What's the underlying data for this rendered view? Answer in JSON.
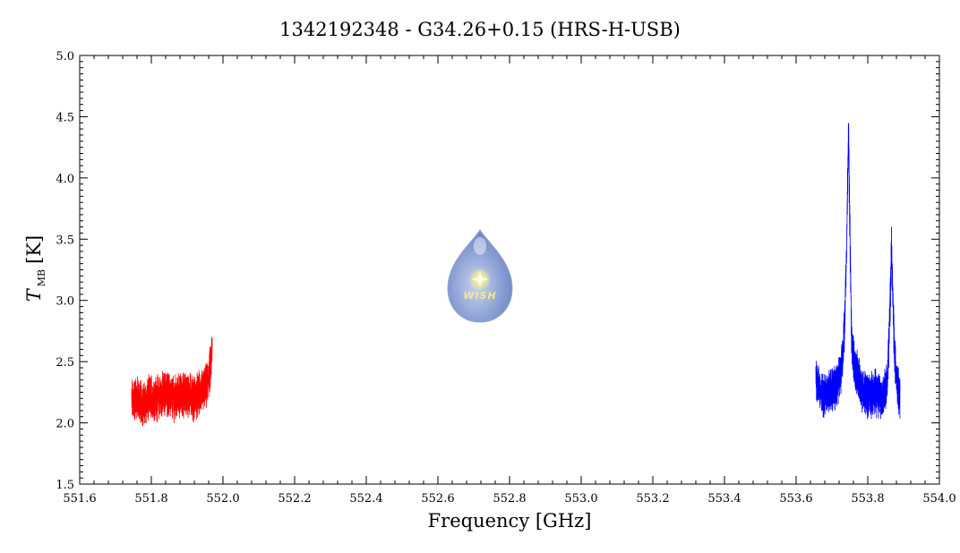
{
  "chart_data": {
    "type": "line",
    "title": "1342192348 - G34.26+0.15 (HRS-H-USB)",
    "xlabel": "Frequency [GHz]",
    "ylabel_main": "T",
    "ylabel_sub": "MB",
    "ylabel_unit": "[K]",
    "xlim": [
      551.6,
      554.0
    ],
    "ylim": [
      1.5,
      5.0
    ],
    "x_ticks": [
      551.6,
      551.8,
      552.0,
      552.2,
      552.4,
      552.6,
      552.8,
      553.0,
      553.2,
      553.4,
      553.6,
      553.8,
      554.0
    ],
    "x_tick_labels": [
      "551.6",
      "551.8",
      "552.0",
      "552.2",
      "552.4",
      "552.6",
      "552.8",
      "553.0",
      "553.2",
      "553.4",
      "553.6",
      "553.8",
      "554.0"
    ],
    "y_ticks": [
      1.5,
      2.0,
      2.5,
      3.0,
      3.5,
      4.0,
      4.5,
      5.0
    ],
    "y_tick_labels": [
      "1.5",
      "2.0",
      "2.5",
      "3.0",
      "3.5",
      "4.0",
      "4.5",
      "5.0"
    ],
    "grid": false,
    "series": [
      {
        "color": "#ff0000",
        "x": [
          551.745,
          551.76,
          551.78,
          551.8,
          551.82,
          551.84,
          551.86,
          551.88,
          551.9,
          551.92,
          551.94,
          551.955,
          551.965,
          551.97
        ],
        "y": [
          2.18,
          2.2,
          2.15,
          2.22,
          2.2,
          2.25,
          2.2,
          2.22,
          2.24,
          2.2,
          2.25,
          2.3,
          2.45,
          2.6
        ]
      },
      {
        "color": "#0000ff",
        "x": [
          553.655,
          553.67,
          553.69,
          553.71,
          553.725,
          553.735,
          553.742,
          553.746,
          553.75,
          553.755,
          553.765,
          553.78,
          553.8,
          553.82,
          553.84,
          553.855,
          553.862,
          553.866,
          553.87,
          553.875,
          553.882,
          553.89
        ],
        "y": [
          2.4,
          2.22,
          2.25,
          2.28,
          2.4,
          2.75,
          3.6,
          4.45,
          3.6,
          2.65,
          2.45,
          2.3,
          2.22,
          2.25,
          2.2,
          2.35,
          2.9,
          3.5,
          3.0,
          2.55,
          2.35,
          2.2
        ]
      }
    ]
  },
  "logo": {
    "label": "WISH"
  }
}
